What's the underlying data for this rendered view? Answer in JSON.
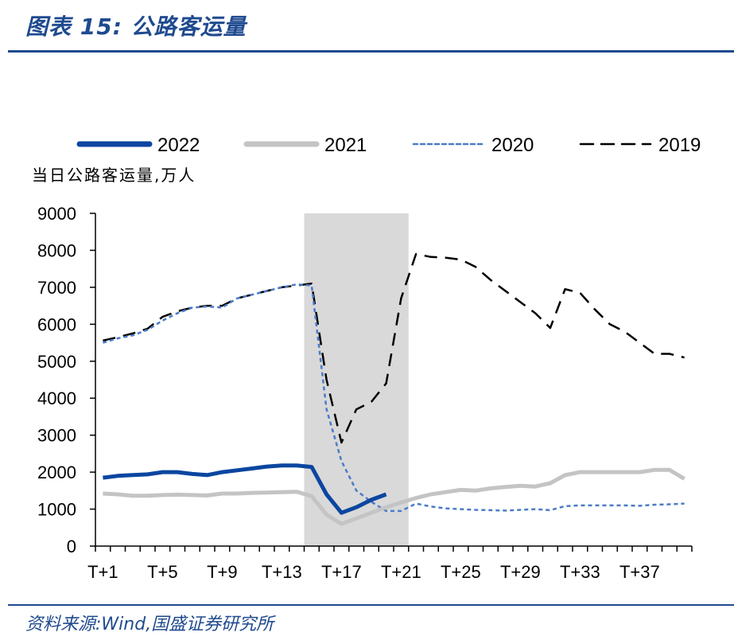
{
  "header": {
    "title": "图表 15: 公路客运量"
  },
  "footer": {
    "source": "资料来源:Wind,国盛证券研究所"
  },
  "chart_data": {
    "type": "line",
    "title": "公路客运量",
    "ylabel": "当日公路客运量,万人",
    "xlabel": "",
    "ylim": [
      0,
      9000
    ],
    "yticks": [
      0,
      1000,
      2000,
      3000,
      4000,
      5000,
      6000,
      7000,
      8000,
      9000
    ],
    "xtick_labels": [
      "T+1",
      "T+5",
      "T+9",
      "T+13",
      "T+17",
      "T+21",
      "T+25",
      "T+29",
      "T+33",
      "T+37"
    ],
    "x_count": 40,
    "highlight_band": {
      "from": "T+15",
      "to": "T+21"
    },
    "series": [
      {
        "name": "2022",
        "color": "#0b46a0",
        "style": "solid-thick",
        "values": [
          1850,
          1900,
          1920,
          1940,
          2000,
          2000,
          1950,
          1920,
          2000,
          2050,
          2100,
          2150,
          2180,
          2180,
          2140,
          1400,
          900,
          1050,
          1250,
          1400
        ]
      },
      {
        "name": "2021",
        "color": "#c4c4c4",
        "style": "solid-thick",
        "values": [
          1420,
          1400,
          1360,
          1360,
          1380,
          1390,
          1380,
          1370,
          1420,
          1420,
          1440,
          1450,
          1460,
          1470,
          1350,
          850,
          600,
          750,
          900,
          1050,
          1180,
          1300,
          1400,
          1460,
          1520,
          1500,
          1560,
          1600,
          1630,
          1610,
          1700,
          1920,
          2000,
          2000,
          2000,
          2000,
          2000,
          2060,
          2060,
          1820
        ]
      },
      {
        "name": "2020",
        "color": "#4a7bc8",
        "style": "dotted",
        "values": [
          5500,
          5620,
          5700,
          5850,
          6100,
          6300,
          6450,
          6480,
          6450,
          6700,
          6800,
          6900,
          7000,
          7080,
          7050,
          3700,
          2300,
          1500,
          1200,
          950,
          950,
          1150,
          1070,
          1020,
          1000,
          980,
          970,
          960,
          980,
          1000,
          970,
          1080,
          1100,
          1100,
          1100,
          1100,
          1090,
          1120,
          1130,
          1150
        ]
      },
      {
        "name": "2019",
        "color": "#000000",
        "style": "dashed",
        "values": [
          5560,
          5650,
          5750,
          5880,
          6200,
          6350,
          6450,
          6500,
          6500,
          6700,
          6800,
          6900,
          7000,
          7050,
          7100,
          4500,
          2800,
          3700,
          3900,
          4400,
          6700,
          7900,
          7820,
          7800,
          7750,
          7550,
          7200,
          6900,
          6600,
          6300,
          5900,
          6950,
          6850,
          6400,
          6000,
          5800,
          5500,
          5200,
          5200,
          5100
        ]
      }
    ]
  }
}
